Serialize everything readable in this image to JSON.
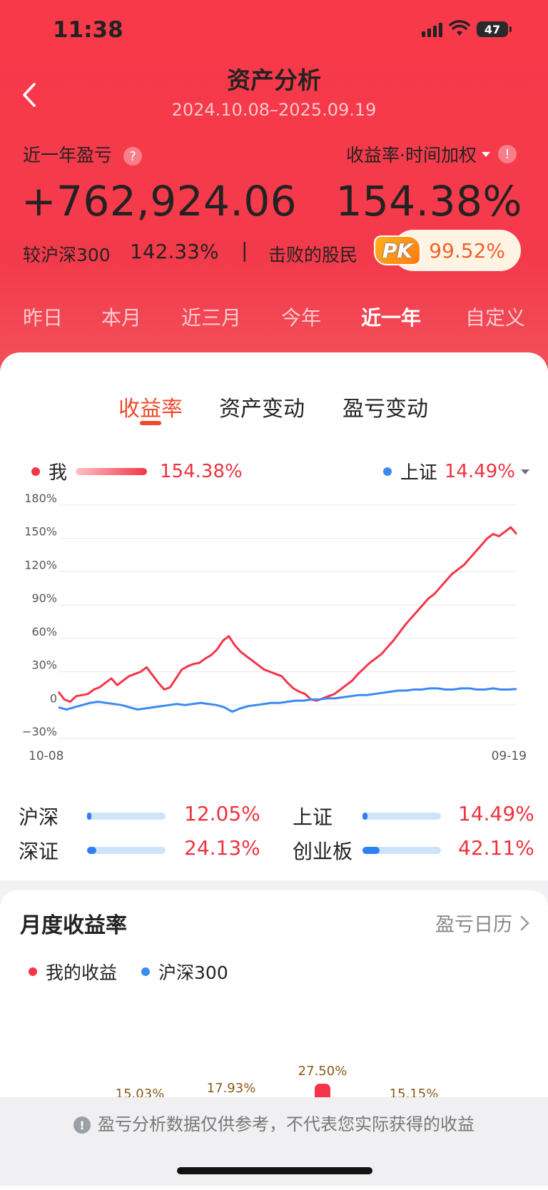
{
  "status": {
    "time": "11:38",
    "battery": "47"
  },
  "header": {
    "title": "资产分析",
    "date_range": "2024.10.08–2025.09.19"
  },
  "summary": {
    "pnl_label": "近一年盈亏",
    "pnl_value": "+762,924.06",
    "rate_label": "收益率·时间加权",
    "rate_value": "154.38%",
    "cmp_label": "较沪深300",
    "cmp_value": "142.33%",
    "separator": "|",
    "beat_label": "击败的股民",
    "pk": "PK",
    "beat_value": "99.52%",
    "help_icon": "question-icon",
    "info_icon": "exclamation-icon"
  },
  "periods": [
    "昨日",
    "本月",
    "近三月",
    "今年",
    "近一年",
    "自定义"
  ],
  "active_period": "近一年",
  "segments": [
    "收益率",
    "资产变动",
    "盈亏变动"
  ],
  "active_segment": "收益率",
  "legend": {
    "me_label": "我",
    "me_value": "154.38%",
    "bench_label": "上证",
    "bench_value": "14.49%"
  },
  "chart_data": {
    "type": "line",
    "x_start": "10-08",
    "x_end": "09-19",
    "y_ticks": [
      "180%",
      "150%",
      "120%",
      "90%",
      "60%",
      "30%",
      "0",
      "−30%"
    ],
    "ylim": [
      -30,
      180
    ],
    "series": [
      {
        "name": "我",
        "color": "#f5354a",
        "values": [
          12,
          5,
          3,
          8,
          9,
          10,
          14,
          16,
          20,
          24,
          18,
          22,
          26,
          28,
          30,
          34,
          27,
          20,
          14,
          16,
          24,
          32,
          35,
          37,
          38,
          42,
          45,
          50,
          58,
          62,
          54,
          48,
          44,
          40,
          36,
          32,
          30,
          28,
          26,
          20,
          15,
          12,
          10,
          5,
          4,
          6,
          8,
          10,
          14,
          18,
          22,
          28,
          33,
          38,
          42,
          46,
          52,
          58,
          65,
          72,
          78,
          84,
          90,
          96,
          100,
          106,
          112,
          118,
          122,
          126,
          132,
          138,
          144,
          150,
          154,
          152,
          156,
          160,
          154
        ]
      },
      {
        "name": "上证",
        "color": "#3b8af2",
        "values": [
          -2,
          -4,
          -2,
          0,
          2,
          3,
          2,
          1,
          0,
          -2,
          -4,
          -3,
          -2,
          -1,
          0,
          1,
          0,
          1,
          2,
          1,
          0,
          -2,
          -6,
          -3,
          -1,
          0,
          1,
          2,
          2,
          3,
          4,
          4,
          5,
          5,
          6,
          6,
          7,
          8,
          9,
          9,
          10,
          11,
          12,
          13,
          13,
          14,
          14,
          15,
          15,
          14,
          14,
          15,
          15,
          14,
          14,
          15,
          14,
          14,
          14.49
        ]
      }
    ]
  },
  "indices": [
    {
      "name": "沪深",
      "value": "12.05%",
      "fill": 0.05
    },
    {
      "name": "上证",
      "value": "14.49%",
      "fill": 0.06
    },
    {
      "name": "深证",
      "value": "24.13%",
      "fill": 0.12
    },
    {
      "name": "创业板",
      "value": "42.11%",
      "fill": 0.22
    }
  ],
  "monthly": {
    "title": "月度收益率",
    "calendar_link": "盈亏日历",
    "legend_mine": "我的收益",
    "legend_bench": "沪深300",
    "bars": [
      {
        "label": "15.03%",
        "value": 15.03
      },
      {
        "label": "17.93%",
        "value": 17.93
      },
      {
        "label": "27.50%",
        "value": 27.5
      },
      {
        "label": "15.15%",
        "value": 15.15
      }
    ]
  },
  "footer": {
    "disclaimer": "盈亏分析数据仅供参考，不代表您实际获得的收益"
  }
}
